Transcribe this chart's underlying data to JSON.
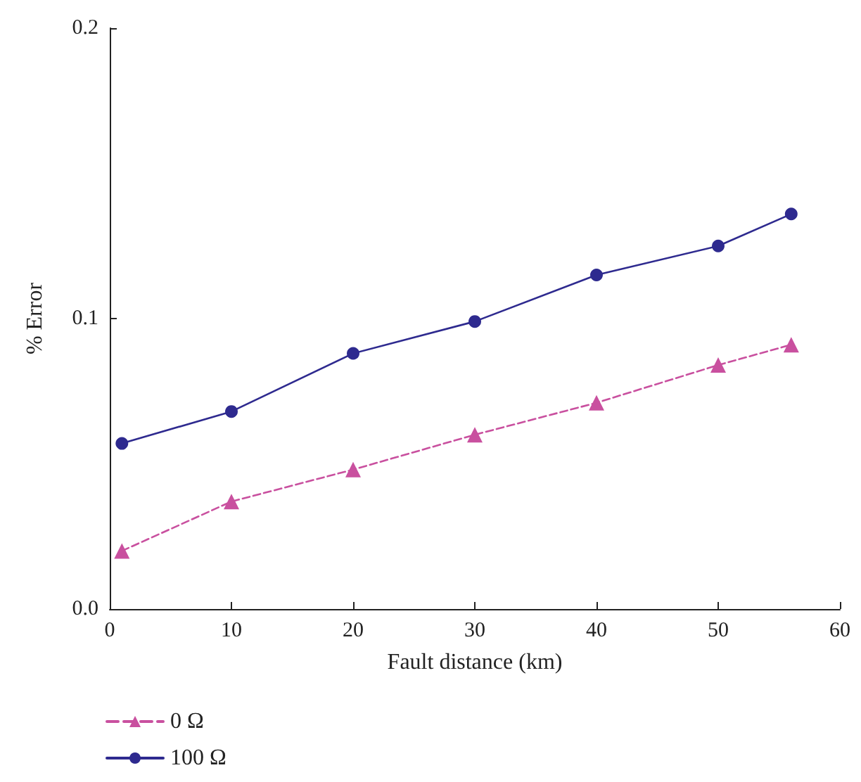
{
  "chart_data": {
    "type": "line",
    "xlabel": "Fault distance (km)",
    "ylabel": "% Error",
    "xlim": [
      0,
      60
    ],
    "xticks": [
      0,
      10,
      20,
      30,
      40,
      50,
      60
    ],
    "ylim": [
      0,
      0.2
    ],
    "yticks": [
      {
        "value": 0,
        "label": "0.0"
      },
      {
        "value": 0.1,
        "label": "0.1"
      },
      {
        "value": 0.2,
        "label": "0.2"
      }
    ],
    "x": [
      1,
      10,
      20,
      30,
      40,
      50,
      56
    ],
    "series": [
      {
        "name": "0 Ω",
        "color": "#c9509f",
        "marker": "triangle",
        "line_style": "dashed",
        "values": [
          0.02,
          0.037,
          0.048,
          0.06,
          0.071,
          0.084,
          0.091
        ]
      },
      {
        "name": "100 Ω",
        "color": "#2e2a8f",
        "marker": "circle",
        "line_style": "solid",
        "values": [
          0.057,
          0.068,
          0.088,
          0.099,
          0.115,
          0.125,
          0.136
        ]
      }
    ],
    "grid": false,
    "legend": "bottom left"
  }
}
